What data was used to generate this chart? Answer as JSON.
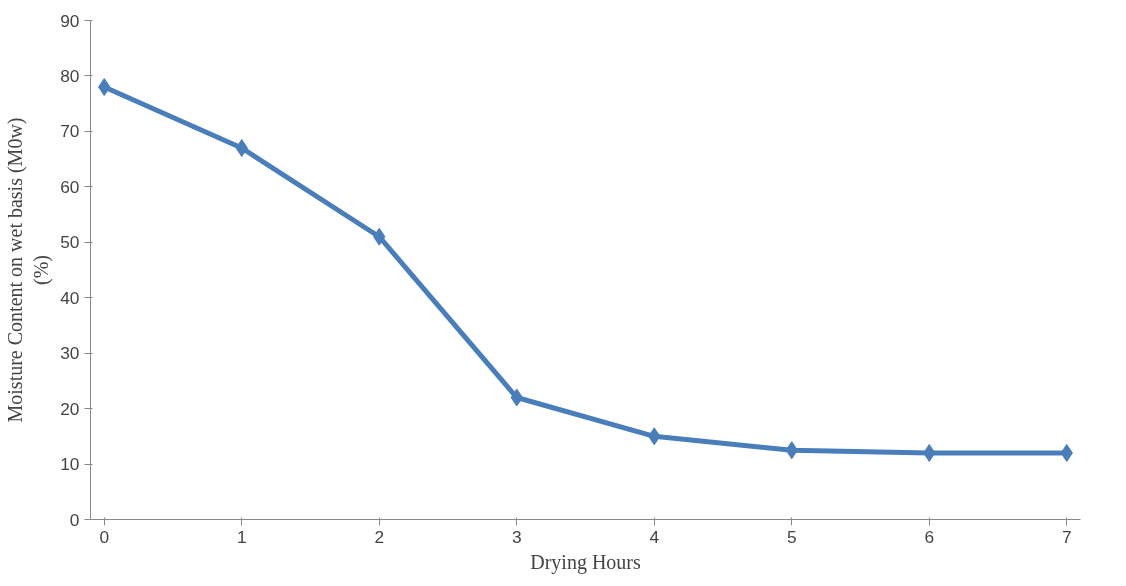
{
  "chart_data": {
    "type": "line",
    "xlabel": "Drying Hours",
    "ylabel": "Moisture Content on wet basis (M0w)\n(%)",
    "x": [
      0,
      1,
      2,
      3,
      4,
      5,
      6,
      7
    ],
    "series": [
      {
        "color": "#4a7ebb",
        "values": [
          78,
          67,
          51,
          22,
          15,
          12.5,
          12,
          12
        ]
      }
    ],
    "xlim": [
      -0.1,
      7.1
    ],
    "xticks": [
      0,
      1,
      2,
      3,
      4,
      5,
      6,
      7
    ],
    "ylim": [
      0,
      90
    ],
    "yticks": [
      0,
      10,
      20,
      30,
      40,
      50,
      60,
      70,
      80,
      90
    ],
    "grid": false,
    "marker": "diamond",
    "line_style": "solid"
  }
}
